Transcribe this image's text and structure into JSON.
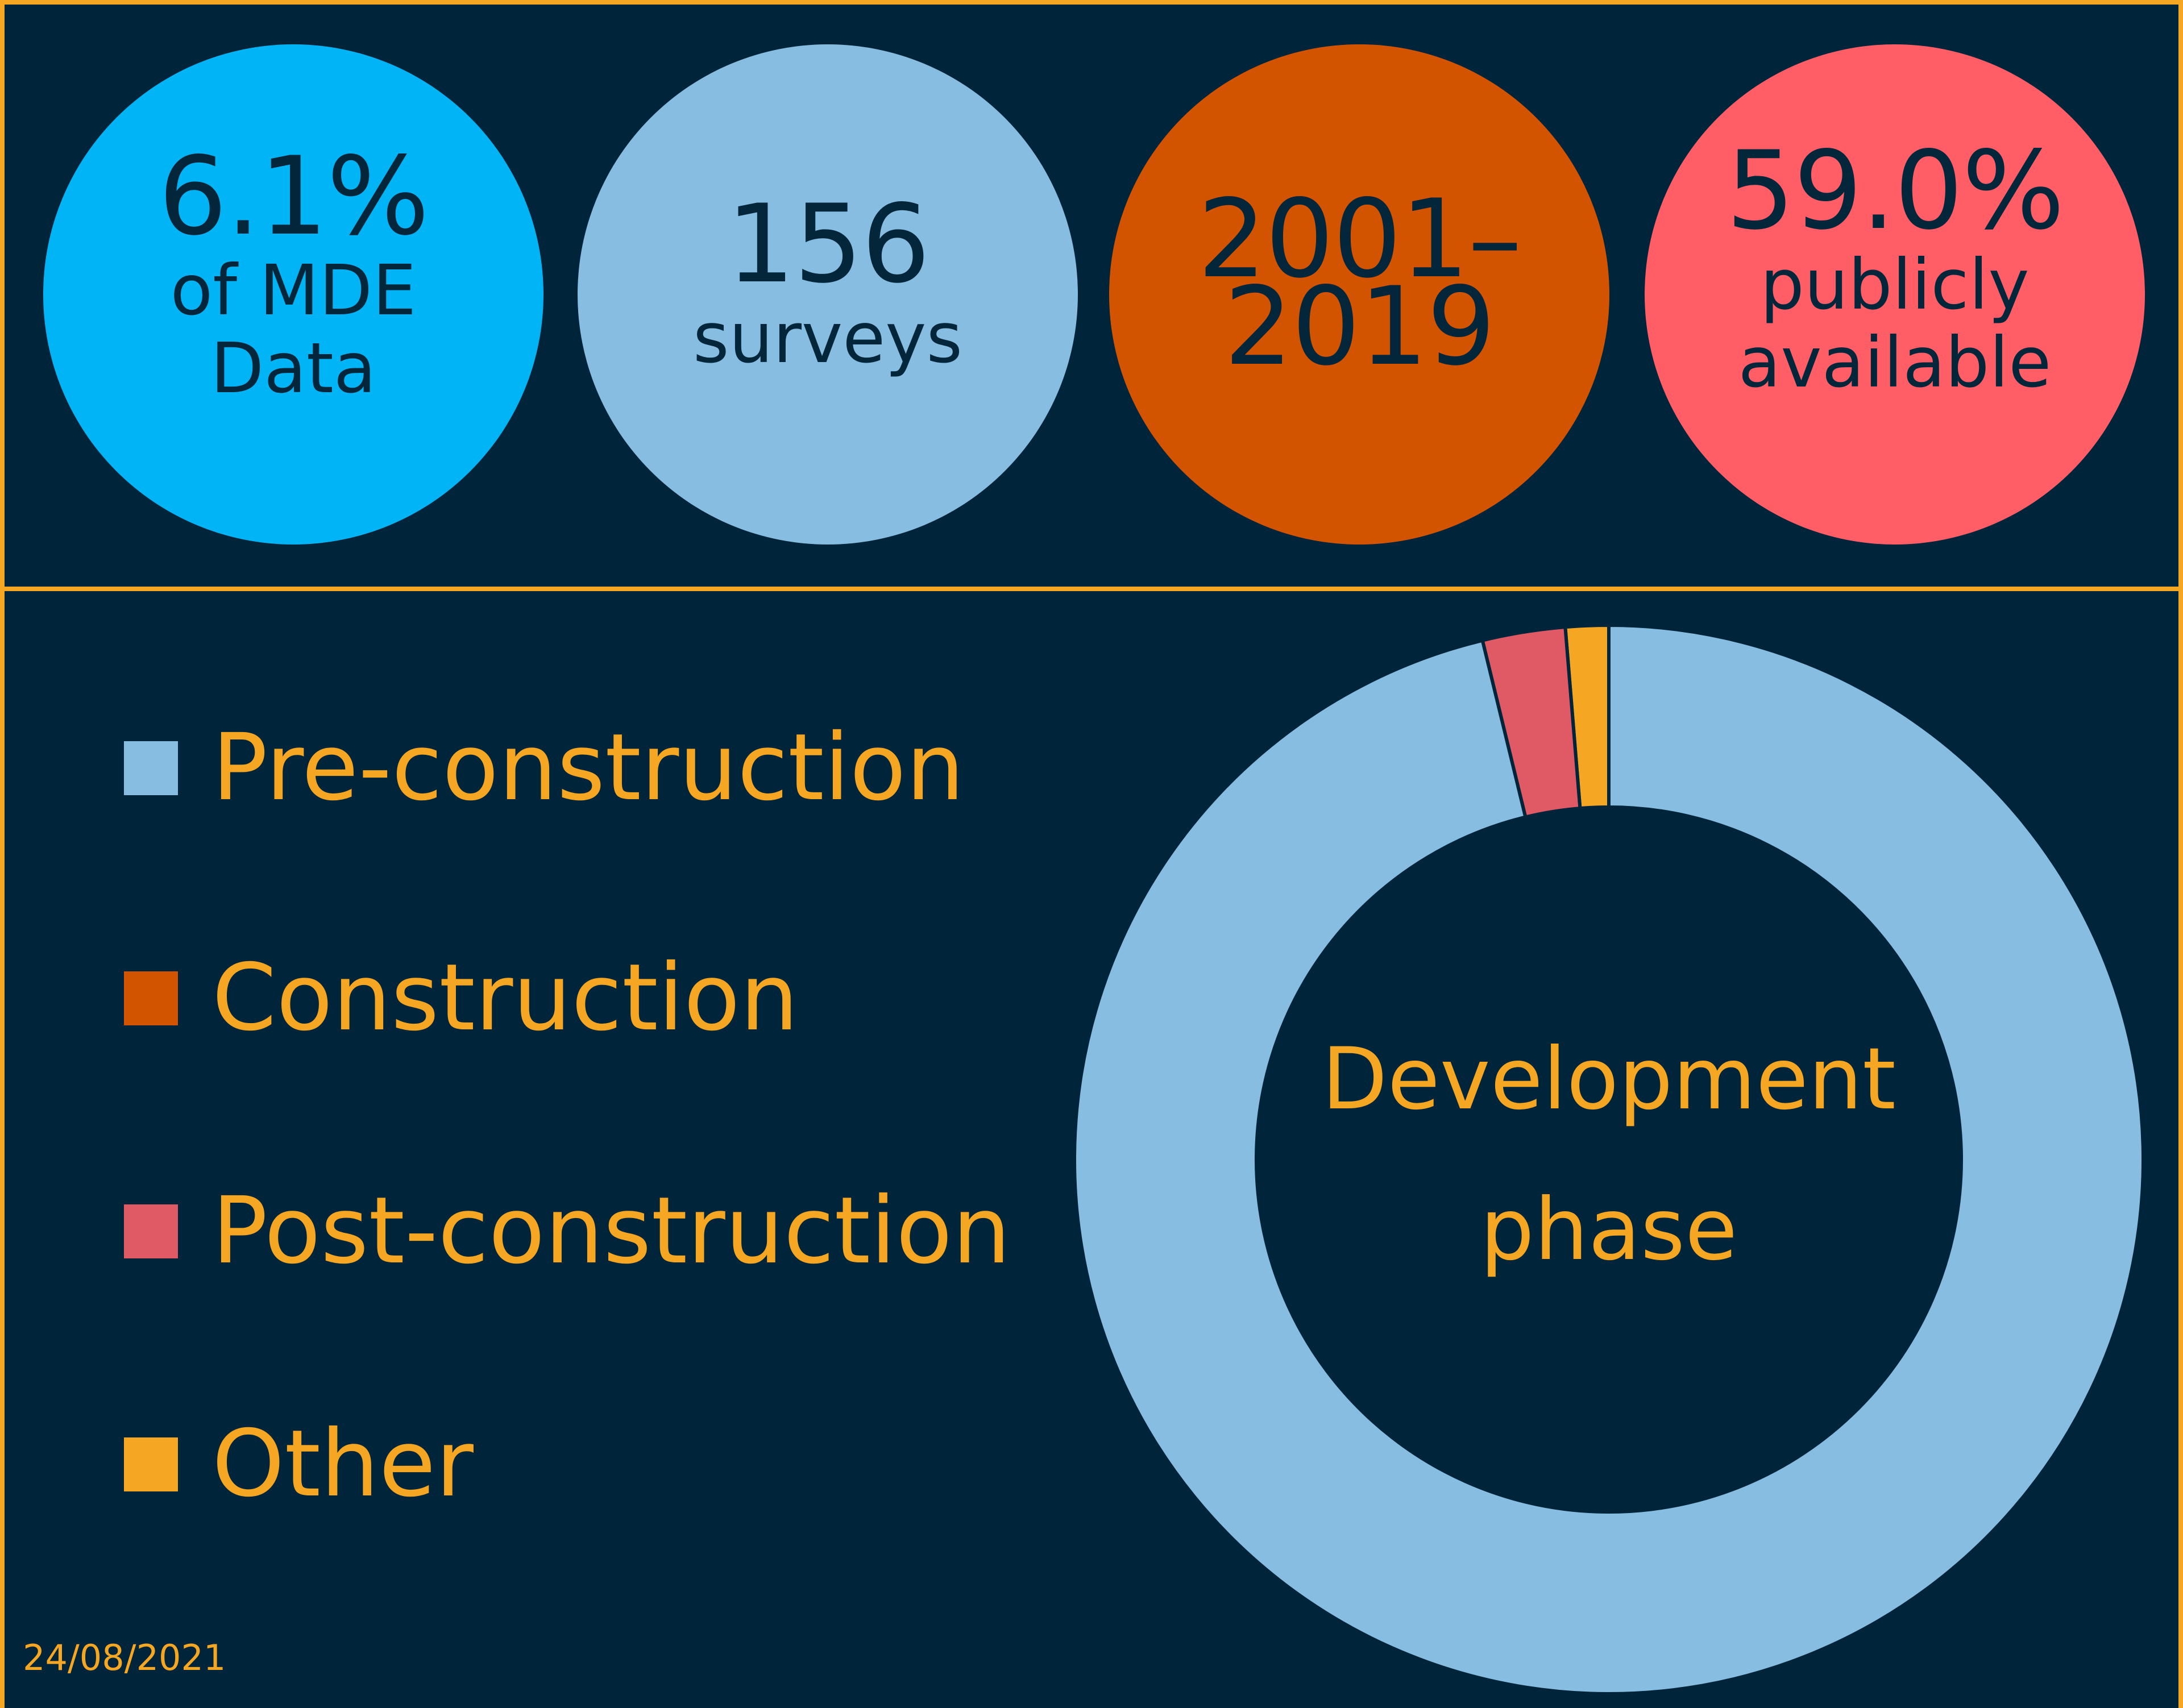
{
  "kpis": [
    {
      "big": "6.1%",
      "small_lines": [
        "of MDE",
        "Data"
      ],
      "color": "#00b4f5"
    },
    {
      "big": "156",
      "small_lines": [
        "surveys"
      ],
      "color": "#86bde1"
    },
    {
      "big_lines": [
        "2001–",
        "2019"
      ],
      "color": "#d35400"
    },
    {
      "big": "59.0%",
      "small_lines": [
        "publicly",
        "available"
      ],
      "color": "#ff5e67"
    }
  ],
  "chart_data": {
    "type": "pie",
    "donut": true,
    "center_label_lines": [
      "Development",
      "phase"
    ],
    "categories": [
      "Pre-construction",
      "Construction",
      "Post-construction",
      "Other"
    ],
    "values": [
      96.2,
      0,
      2.5,
      1.3
    ],
    "colors": [
      "#86bde1",
      "#d35400",
      "#e05a66",
      "#f5a623"
    ],
    "legend_position": "left"
  },
  "footer": {
    "date": "24/08/2021"
  },
  "colors": {
    "background": "#00253a",
    "accent": "#f5a623",
    "text_dark": "#04263a"
  }
}
